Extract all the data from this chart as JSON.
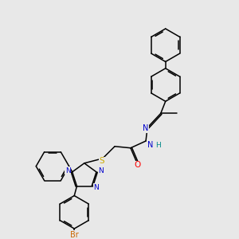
{
  "bg_color": "#e8e8e8",
  "bond_color": "#000000",
  "atom_colors": {
    "N": "#0000cc",
    "O": "#ff0000",
    "S": "#ccaa00",
    "Br": "#cc6600",
    "H": "#008888",
    "C": "#000000"
  },
  "figsize": [
    3.0,
    3.0
  ],
  "dpi": 100
}
